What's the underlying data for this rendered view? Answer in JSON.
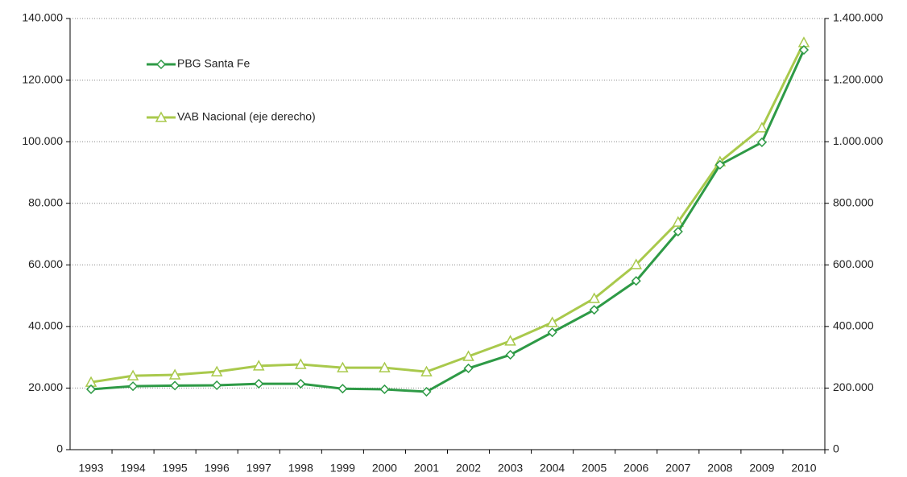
{
  "chart_data": {
    "type": "line",
    "categories": [
      "1993",
      "1994",
      "1995",
      "1996",
      "1997",
      "1998",
      "1999",
      "2000",
      "2001",
      "2002",
      "2003",
      "2004",
      "2005",
      "2006",
      "2007",
      "2008",
      "2009",
      "2010"
    ],
    "series": [
      {
        "name": "PBG Santa Fe",
        "color": "#2e9a46",
        "marker": "diamond",
        "values": [
          19600,
          20600,
          20800,
          20900,
          21400,
          21400,
          19800,
          19600,
          18800,
          26400,
          30800,
          38100,
          45400,
          54800,
          70800,
          92500,
          99800,
          129800
        ]
      },
      {
        "name": "VAB Nacional (eje derecho)",
        "color": "#a9c94c",
        "marker": "triangle",
        "axis": "y2",
        "values": [
          219000,
          240000,
          243000,
          253000,
          272000,
          277000,
          266000,
          266000,
          253000,
          303000,
          353000,
          413000,
          491000,
          601000,
          739000,
          935000,
          1045000,
          1322000
        ]
      }
    ],
    "ylim": [
      0,
      140000
    ],
    "yticks": [
      0,
      {
        "value": 20000,
        "label": "20.000"
      },
      {
        "value": 40000,
        "label": "40.000"
      },
      {
        "value": 60000,
        "label": "60.000"
      },
      {
        "value": 80000,
        "label": "80.000"
      },
      {
        "value": 100000,
        "label": "100.000"
      },
      {
        "value": 120000,
        "label": "120.000"
      },
      {
        "value": 140000,
        "label": "140.000"
      }
    ],
    "y2lim": [
      0,
      1400000
    ],
    "y2ticks": [
      0,
      {
        "value": 200000,
        "label": "200.000"
      },
      {
        "value": 400000,
        "label": "400.000"
      },
      {
        "value": 600000,
        "label": "600.000"
      },
      {
        "value": 800000,
        "label": "800.000"
      },
      {
        "value": 1000000,
        "label": "1.000.000"
      },
      {
        "value": 1200000,
        "label": "1.200.000"
      },
      {
        "value": 1400000,
        "label": "1.400.000"
      }
    ],
    "grid": true,
    "legend": "upper left"
  }
}
